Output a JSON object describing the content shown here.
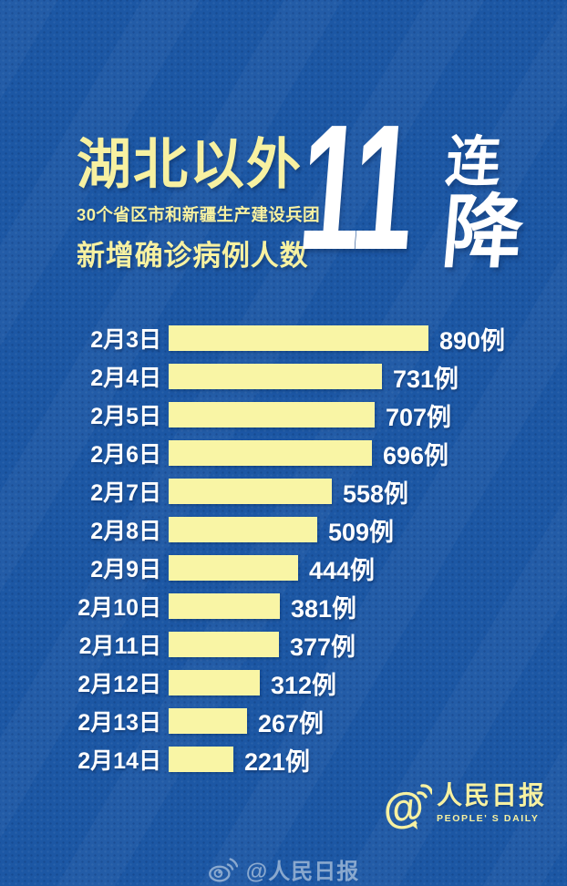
{
  "header": {
    "title": "湖北以外",
    "subtitle": "30个省区市和新疆生产建设兵团",
    "line2": "新增确诊病例人数",
    "streak_number": "11",
    "streak_char_top": "连",
    "streak_char_bottom": "降"
  },
  "chart_data": {
    "type": "bar",
    "orientation": "horizontal",
    "title": "湖北以外30个省区市和新疆生产建设兵团新增确诊病例人数 11连降",
    "categories": [
      "2月3日",
      "2月4日",
      "2月5日",
      "2月6日",
      "2月7日",
      "2月8日",
      "2月9日",
      "2月10日",
      "2月11日",
      "2月12日",
      "2月13日",
      "2月14日"
    ],
    "values": [
      890,
      731,
      707,
      696,
      558,
      509,
      444,
      381,
      377,
      312,
      267,
      221
    ],
    "unit": "例",
    "xlim": [
      0,
      890
    ],
    "grid": false,
    "legend": false,
    "value_labels": "end-of-bar"
  },
  "footer": {
    "brand_name": "人民日报",
    "brand_subtitle": "PEOPLE' S DAILY",
    "watermark_text": "@人民日报"
  },
  "colors": {
    "background": "#1c57a4",
    "accent_yellow": "#f7f1a1",
    "bar_yellow": "#f9f5a5",
    "text_white": "#ffffff",
    "watermark": "#9db7d6"
  }
}
